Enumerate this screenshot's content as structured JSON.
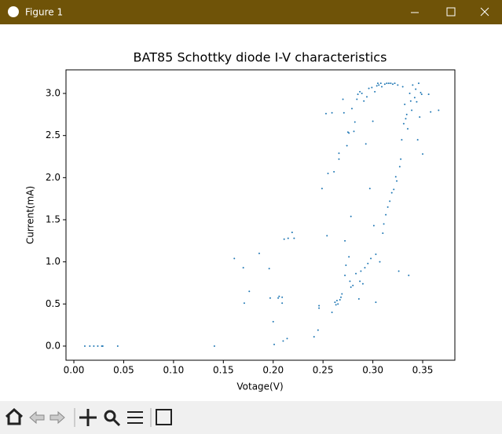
{
  "window": {
    "title": "Figure 1"
  },
  "chart_data": {
    "type": "scatter",
    "title": "BAT85 Schottky diode I-V characteristics",
    "xlabel": "Votage(V)",
    "ylabel": "Current(mA)",
    "color": "#1f77b4",
    "xlim": [
      -0.0079,
      0.3823
    ],
    "ylim": [
      -0.168,
      3.28
    ],
    "xticks": [
      {
        "value": 0,
        "label": "0.00"
      },
      {
        "value": 0.05,
        "label": "0.05"
      },
      {
        "value": 0.1,
        "label": "0.10"
      },
      {
        "value": 0.15,
        "label": "0.15"
      },
      {
        "value": 0.2,
        "label": "0.20"
      },
      {
        "value": 0.25,
        "label": "0.25"
      },
      {
        "value": 0.3,
        "label": "0.30"
      },
      {
        "value": 0.35,
        "label": "0.35"
      }
    ],
    "yticks": [
      {
        "value": 0,
        "label": "0.0"
      },
      0.5,
      {
        "value": 1,
        "label": "1.0"
      },
      1.5,
      {
        "value": 2,
        "label": "2.0"
      },
      2.5,
      {
        "value": 3,
        "label": "3.0"
      }
    ],
    "x": [
      0.011,
      0.016,
      0.02,
      0.024,
      0.028,
      0.029,
      0.044,
      0.141,
      0.161,
      0.17,
      0.171,
      0.176,
      0.186,
      0.196,
      0.197,
      0.2,
      0.201,
      0.205,
      0.206,
      0.209,
      0.209,
      0.21,
      0.211,
      0.214,
      0.215,
      0.219,
      0.221,
      0.241,
      0.245,
      0.246,
      0.246,
      0.249,
      0.253,
      0.254,
      0.255,
      0.259,
      0.259,
      0.261,
      0.262,
      0.263,
      0.264,
      0.265,
      0.266,
      0.266,
      0.267,
      0.268,
      0.269,
      0.27,
      0.271,
      0.272,
      0.272,
      0.273,
      0.274,
      0.275,
      0.276,
      0.276,
      0.277,
      0.278,
      0.278,
      0.279,
      0.28,
      0.281,
      0.282,
      0.283,
      0.284,
      0.285,
      0.286,
      0.287,
      0.287,
      0.288,
      0.289,
      0.29,
      0.291,
      0.292,
      0.293,
      0.294,
      0.295,
      0.296,
      0.297,
      0.298,
      0.299,
      0.3,
      0.301,
      0.302,
      0.303,
      0.303,
      0.304,
      0.305,
      0.306,
      0.307,
      0.308,
      0.309,
      0.31,
      0.311,
      0.312,
      0.313,
      0.314,
      0.315,
      0.316,
      0.317,
      0.318,
      0.319,
      0.32,
      0.321,
      0.322,
      0.323,
      0.324,
      0.325,
      0.326,
      0.327,
      0.328,
      0.329,
      0.33,
      0.331,
      0.332,
      0.333,
      0.334,
      0.335,
      0.336,
      0.337,
      0.338,
      0.339,
      0.34,
      0.342,
      0.343,
      0.344,
      0.345,
      0.346,
      0.347,
      0.348,
      0.349,
      0.35,
      0.356,
      0.358,
      0.366
    ],
    "values": [
      0,
      0,
      0,
      0,
      0,
      0,
      0,
      0,
      1.04,
      0.93,
      0.51,
      0.65,
      1.1,
      0.92,
      0.57,
      0.29,
      0.02,
      0.57,
      0.59,
      0.58,
      0.51,
      0.06,
      1.27,
      0.09,
      1.28,
      1.35,
      1.28,
      0.11,
      0.19,
      0.45,
      0.48,
      1.87,
      2.76,
      1.31,
      2.05,
      0.4,
      2.77,
      2.07,
      0.52,
      0.49,
      0.54,
      0.5,
      2.22,
      2.29,
      0.55,
      0.58,
      0.62,
      2.93,
      2.77,
      1.25,
      0.84,
      0.96,
      2.38,
      2.54,
      2.53,
      1.06,
      0.77,
      1.54,
      0.7,
      2.82,
      0.72,
      2.55,
      2.66,
      0.86,
      2.93,
      2.99,
      0.56,
      3.02,
      0.77,
      0.89,
      3.0,
      0.74,
      2.91,
      0.93,
      2.4,
      2.96,
      0.98,
      3.06,
      1.87,
      1.04,
      3.07,
      2.67,
      1.43,
      3.02,
      1.09,
      0.52,
      3.09,
      3.12,
      3.1,
      1.0,
      3.12,
      3.08,
      1.34,
      1.45,
      3.11,
      1.56,
      3.12,
      1.65,
      3.12,
      1.72,
      3.12,
      1.82,
      3.11,
      1.86,
      3.12,
      2.01,
      1.96,
      3.1,
      0.89,
      2.13,
      2.22,
      2.45,
      3.08,
      2.64,
      2.87,
      2.7,
      2.75,
      2.58,
      0.84,
      3.0,
      2.91,
      2.8,
      3.1,
      2.95,
      3.05,
      2.9,
      2.45,
      3.12,
      2.72,
      3.01,
      2.99,
      2.28,
      2.99,
      2.78,
      2.8
    ]
  }
}
